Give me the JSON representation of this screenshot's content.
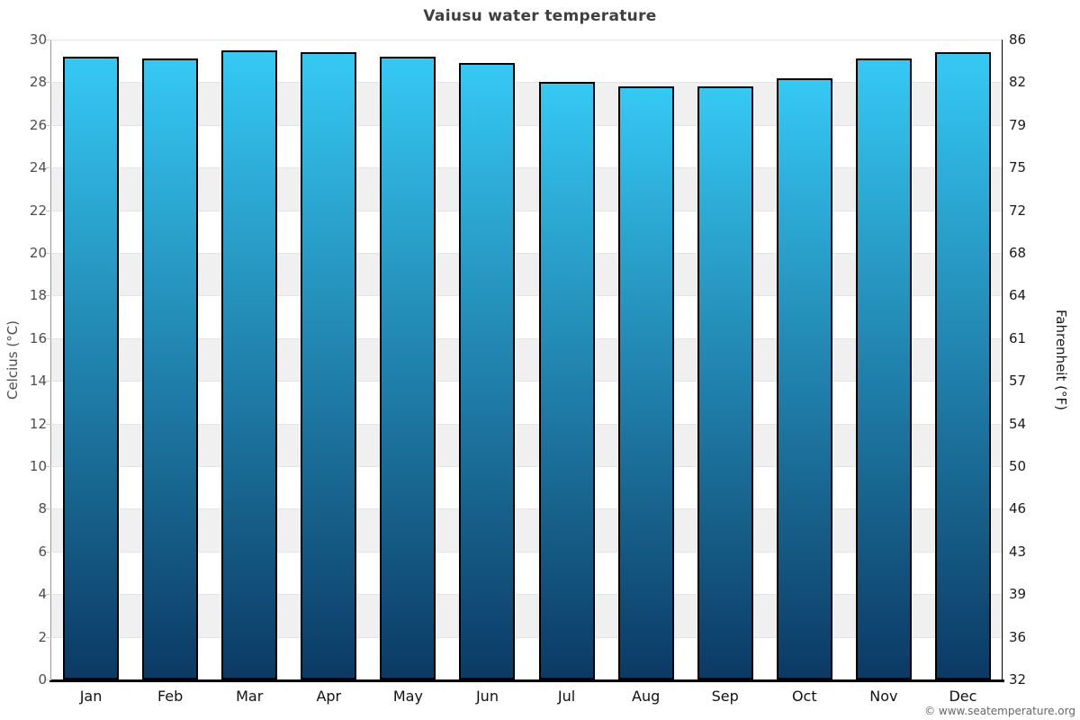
{
  "page": {
    "title": "Vaiusu water temperature",
    "footer": "© www.seatemperature.org"
  },
  "chart_data": {
    "type": "bar",
    "title": "Vaiusu water temperature",
    "categories": [
      "Jan",
      "Feb",
      "Mar",
      "Apr",
      "May",
      "Jun",
      "Jul",
      "Aug",
      "Sep",
      "Oct",
      "Nov",
      "Dec"
    ],
    "values": [
      29.2,
      29.1,
      29.5,
      29.4,
      29.2,
      28.9,
      28.0,
      27.8,
      27.8,
      28.2,
      29.1,
      29.4
    ],
    "unit": "°C",
    "ylabel_left": "Celcius (°C)",
    "ylabel_right": "Fahrenheit (°F)",
    "ylim": [
      0,
      30
    ],
    "ytick_step": 2,
    "yticks_celsius": [
      0,
      2,
      4,
      6,
      8,
      10,
      12,
      14,
      16,
      18,
      20,
      22,
      24,
      26,
      28,
      30
    ],
    "yticks_fahrenheit": [
      32,
      36,
      39,
      43,
      46,
      50,
      54,
      57,
      61,
      64,
      68,
      72,
      75,
      79,
      82,
      86
    ],
    "legend": "none",
    "grid": "alternating-bands",
    "colors": {
      "bar_gradient_top": "#35c9f4",
      "bar_gradient_bottom": "#0b3a64",
      "bar_border": "#000000",
      "band_gray": "#f0f0f0",
      "gridline": "#e4e4e4",
      "axis_black": "#000000",
      "axis_left_gray": "#9a9a9a",
      "tick_text_left": "#4d4d4d",
      "tick_text_right": "#1a1a1a",
      "month_text": "#111111",
      "title_text": "#3f3f3f",
      "footer_text": "#666666"
    }
  }
}
